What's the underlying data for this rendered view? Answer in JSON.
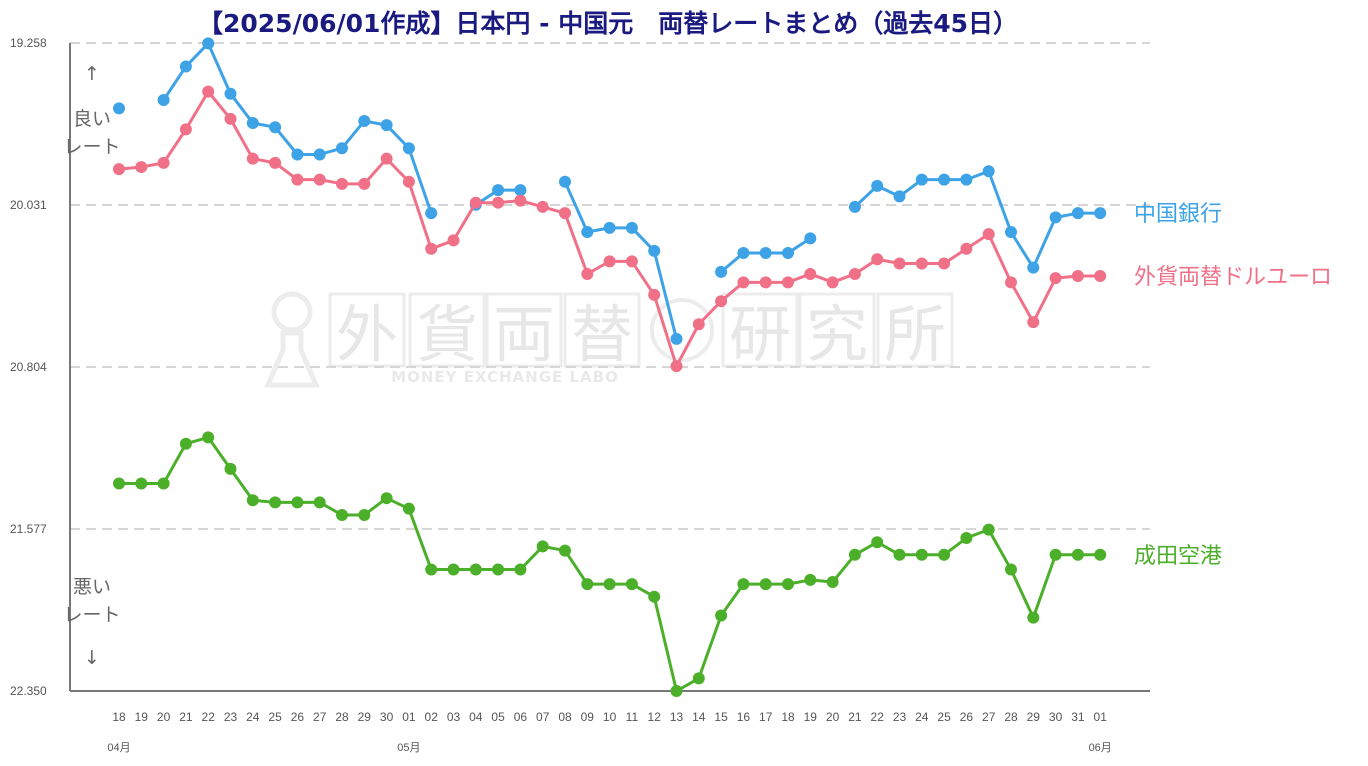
{
  "chart_data": {
    "type": "line",
    "title": "【2025/06/01作成】日本円 - 中国元　両替レートまとめ（過去45日）",
    "y_axis": {
      "inverted": true,
      "ylim": [
        19.258,
        22.35
      ],
      "ticks": [
        "19.258",
        "20.031",
        "20.804",
        "21.577",
        "22.350"
      ],
      "grid": "dashed"
    },
    "x_labels": [
      "18",
      "19",
      "20",
      "21",
      "22",
      "23",
      "24",
      "25",
      "26",
      "27",
      "28",
      "29",
      "30",
      "01",
      "02",
      "03",
      "04",
      "05",
      "06",
      "07",
      "08",
      "09",
      "10",
      "11",
      "12",
      "13",
      "14",
      "15",
      "16",
      "17",
      "18",
      "19",
      "20",
      "21",
      "22",
      "23",
      "24",
      "25",
      "26",
      "27",
      "28",
      "29",
      "30",
      "31",
      "01"
    ],
    "month_labels": [
      {
        "index": 0,
        "text": "04月"
      },
      {
        "index": 13,
        "text": "05月"
      },
      {
        "index": 44,
        "text": "06月"
      }
    ],
    "annotations": {
      "good": [
        "良い",
        "レート"
      ],
      "bad": [
        "悪い",
        "レート"
      ],
      "up_arrow": "↑",
      "down_arrow": "↓"
    },
    "watermark": {
      "text": "外貨両替研究所",
      "sub": "MONEY EXCHANGE LABO"
    },
    "series": [
      {
        "name": "中国銀行",
        "color": "#3da2e6",
        "values": [
          19.57,
          null,
          19.53,
          19.37,
          19.26,
          19.5,
          19.64,
          19.66,
          19.79,
          19.79,
          19.76,
          19.63,
          19.65,
          19.76,
          20.07,
          null,
          20.03,
          19.96,
          19.96,
          null,
          19.92,
          20.16,
          20.14,
          20.14,
          20.25,
          20.67,
          null,
          20.35,
          20.26,
          20.26,
          20.26,
          20.19,
          null,
          20.04,
          19.94,
          19.99,
          19.91,
          19.91,
          19.91,
          19.87,
          20.16,
          20.33,
          20.09,
          20.07,
          20.07
        ]
      },
      {
        "name": "外貨両替ドルユーロ",
        "color": "#f07088",
        "values": [
          19.86,
          19.85,
          19.83,
          19.67,
          19.49,
          19.62,
          19.81,
          19.83,
          19.91,
          19.91,
          19.93,
          19.93,
          19.81,
          19.92,
          20.24,
          20.2,
          20.02,
          20.02,
          20.01,
          20.04,
          20.07,
          20.36,
          20.3,
          20.3,
          20.46,
          20.8,
          20.6,
          20.49,
          20.4,
          20.4,
          20.4,
          20.36,
          20.4,
          20.36,
          20.29,
          20.31,
          20.31,
          20.31,
          20.24,
          20.17,
          20.4,
          20.59,
          20.38,
          20.37,
          20.37
        ]
      },
      {
        "name": "成田空港",
        "color": "#4caf2a",
        "values": [
          21.36,
          21.36,
          21.36,
          21.17,
          21.14,
          21.29,
          21.44,
          21.45,
          21.45,
          21.45,
          21.51,
          21.51,
          21.43,
          21.48,
          21.77,
          21.77,
          21.77,
          21.77,
          21.77,
          21.66,
          21.68,
          21.84,
          21.84,
          21.84,
          21.9,
          22.35,
          22.29,
          21.99,
          21.84,
          21.84,
          21.84,
          21.82,
          21.83,
          21.7,
          21.64,
          21.7,
          21.7,
          21.7,
          21.62,
          21.58,
          21.77,
          22.0,
          21.7,
          21.7,
          21.7
        ]
      }
    ]
  }
}
